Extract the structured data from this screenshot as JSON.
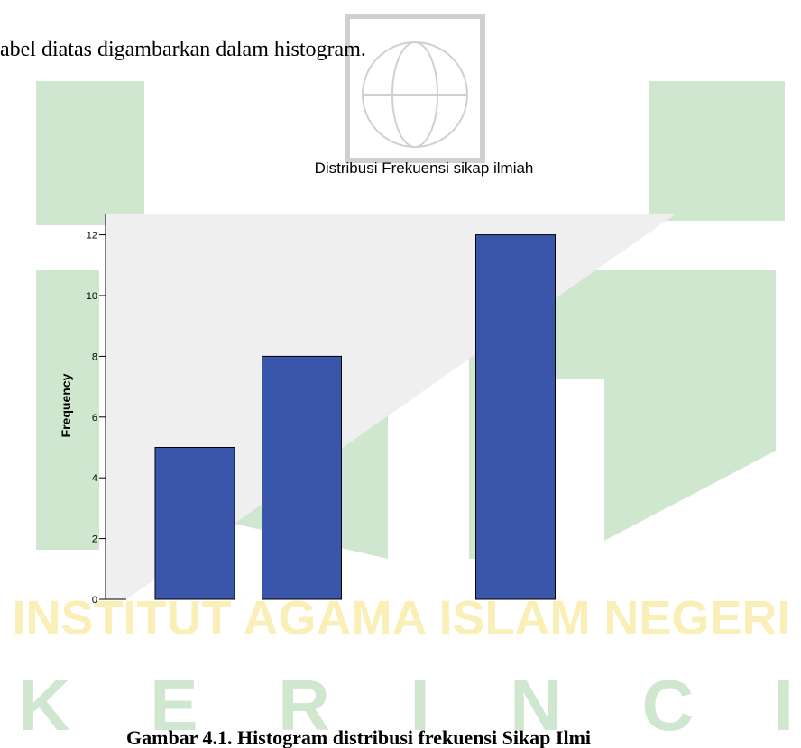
{
  "text": "abel diatas digambarkan dalam histogram.",
  "watermark": {
    "line1": "INSTITUT AGAMA ISLAM NEGERI",
    "line2": "K E R I N C I"
  },
  "chart_data": {
    "type": "bar",
    "title": "Distribusi Frekuensi sikap ilmiah",
    "y_label": "Frequency",
    "categories": [
      null,
      null,
      null,
      null
    ],
    "values": [
      5,
      8,
      null,
      12
    ],
    "color": "#3a56aa",
    "ylim": [
      0,
      12.7
    ],
    "yticks": [
      0,
      2,
      4,
      6,
      8,
      10,
      12
    ]
  },
  "caption": "Gambar 4.1. Histogram distribusi frekuensi Sikap Ilmi"
}
